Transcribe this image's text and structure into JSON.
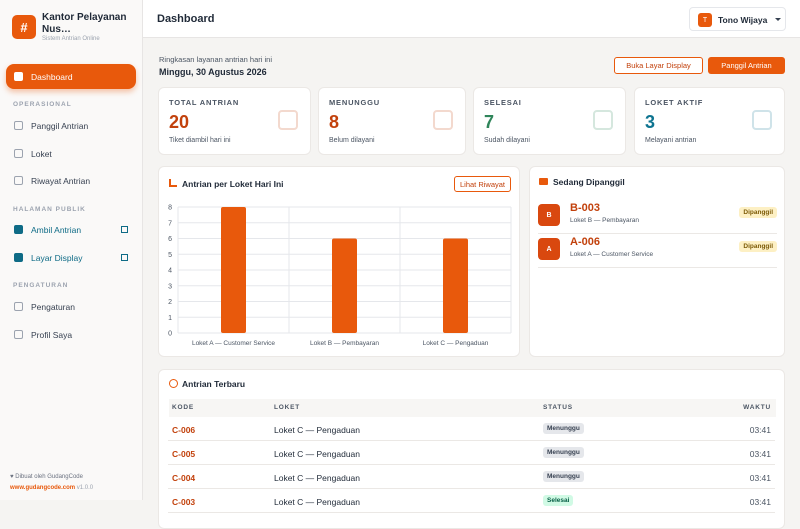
{
  "sidebar": {
    "brand": "Kantor Pelayanan Nus…",
    "brand_sub": "Sistem Antrian Online",
    "logo": "#",
    "nav": [
      {
        "label": "Dashboard"
      },
      {
        "section": "OPERASIONAL"
      },
      {
        "label": "Panggil Antrian"
      },
      {
        "label": "Loket"
      },
      {
        "label": "Riwayat Antrian"
      },
      {
        "section": "HALAMAN PUBLIK"
      },
      {
        "label": "Ambil Antrian"
      },
      {
        "label": "Layar Display"
      },
      {
        "section": "PENGATURAN"
      },
      {
        "label": "Pengaturan"
      },
      {
        "label": "Profil Saya"
      }
    ],
    "footer": {
      "credit": "Dibuat oleh GudangCode",
      "url": "www.gudangcode.com",
      "version": "v1.0.0"
    }
  },
  "header": {
    "title": "Dashboard",
    "user": "Tono Wijaya",
    "avatar": "T"
  },
  "summary": {
    "subtitle": "Ringkasan layanan antrian hari ini",
    "date": "Minggu, 30 Agustus 2026",
    "buttons": [
      "Buka Layar Display",
      "Panggil Antrian"
    ]
  },
  "stats": [
    {
      "label": "TOTAL ANTRIAN",
      "value": 20,
      "sub": "Tiket diambil hari ini"
    },
    {
      "label": "MENUNGGU",
      "value": 8,
      "sub": "Belum dilayani"
    },
    {
      "label": "SELESAI",
      "value": 7,
      "sub": "Sudah dilayani"
    },
    {
      "label": "LOKET AKTIF",
      "value": 3,
      "sub": "Melayani antrian"
    }
  ],
  "chart_data": {
    "type": "bar",
    "title": "Antrian per Loket Hari Ini",
    "button": "Lihat Riwayat",
    "categories": [
      "Loket A — Customer Service",
      "Loket B — Pembayaran",
      "Loket C — Pengaduan"
    ],
    "values": [
      8,
      6,
      6
    ],
    "color": "#e8590c",
    "ylim": [
      0,
      8
    ],
    "yticks": [
      0,
      1,
      2,
      3,
      4,
      5,
      6,
      7,
      8
    ],
    "grid": true
  },
  "called": {
    "title": "Sedang Dipanggil",
    "items": [
      {
        "letter": "B",
        "code": "B-003",
        "loket": "Loket B — Pembayaran",
        "status": "Dipanggil"
      },
      {
        "letter": "A",
        "code": "A-006",
        "loket": "Loket A — Customer Service",
        "status": "Dipanggil"
      }
    ]
  },
  "recent": {
    "title": "Antrian Terbaru",
    "columns": [
      "KODE",
      "LOKET",
      "STATUS",
      "WAKTU"
    ],
    "rows": [
      [
        "C-006",
        "Loket C — Pengaduan",
        "Menunggu",
        "03:41"
      ],
      [
        "C-005",
        "Loket C — Pengaduan",
        "Menunggu",
        "03:41"
      ],
      [
        "C-004",
        "Loket C — Pengaduan",
        "Menunggu",
        "03:41"
      ],
      [
        "C-003",
        "Loket C — Pengaduan",
        "Selesai",
        "03:41"
      ]
    ]
  }
}
